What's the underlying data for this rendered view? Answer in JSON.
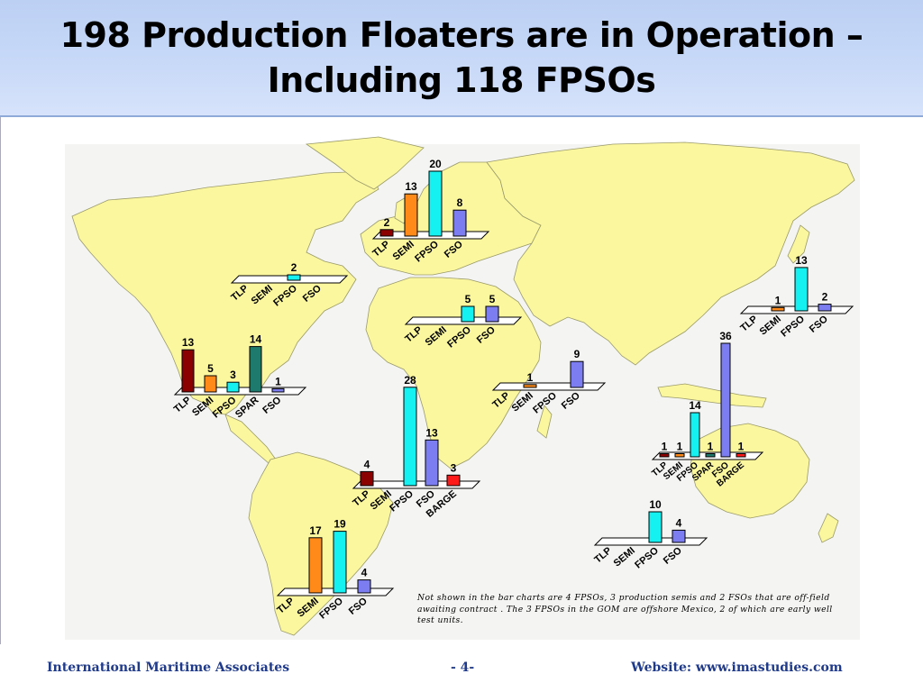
{
  "title": {
    "line1": "198 Production Floaters are in Operation –",
    "line2": "Including 118 FPSOs"
  },
  "colors": {
    "land": "#fbf79f",
    "land_stroke": "#9a9a6a",
    "TLP": "#8b0000",
    "SEMI": "#ff8a1a",
    "FPSO": "#15f0f0",
    "FSO": "#7d7df2",
    "SPAR": "#1f7a6e",
    "BARGE": "#ff1a1a"
  },
  "chart_data": [
    {
      "type": "bar",
      "region": "North Sea",
      "categories": [
        "TLP",
        "SEMI",
        "FPSO",
        "FSO"
      ],
      "values": [
        2,
        13,
        20,
        8
      ]
    },
    {
      "type": "bar",
      "region": "Canada",
      "categories": [
        "TLP",
        "SEMI",
        "FPSO",
        "FSO"
      ],
      "values": [
        0,
        0,
        2,
        0
      ]
    },
    {
      "type": "bar",
      "region": "Mediterranean",
      "categories": [
        "TLP",
        "SEMI",
        "FPSO",
        "FSO"
      ],
      "values": [
        0,
        0,
        5,
        5
      ]
    },
    {
      "type": "bar",
      "region": "Gulf of Mexico",
      "categories": [
        "TLP",
        "SEMI",
        "FPSO",
        "SPAR",
        "FSO"
      ],
      "values": [
        13,
        5,
        3,
        14,
        1
      ]
    },
    {
      "type": "bar",
      "region": "East Asia",
      "categories": [
        "TLP",
        "SEMI",
        "FPSO",
        "FSO"
      ],
      "values": [
        0,
        1,
        13,
        2
      ]
    },
    {
      "type": "bar",
      "region": "Middle East",
      "categories": [
        "TLP",
        "SEMI",
        "FPSO",
        "FSO"
      ],
      "values": [
        0,
        1,
        0,
        9
      ]
    },
    {
      "type": "bar",
      "region": "West Africa",
      "categories": [
        "TLP",
        "SEMI",
        "FPSO",
        "FSO",
        "BARGE"
      ],
      "values": [
        4,
        0,
        28,
        13,
        3
      ]
    },
    {
      "type": "bar",
      "region": "Southeast Asia",
      "categories": [
        "TLP",
        "SEMI",
        "FPSO",
        "SPAR",
        "FSO",
        "BARGE"
      ],
      "values": [
        1,
        1,
        14,
        1,
        36,
        1
      ]
    },
    {
      "type": "bar",
      "region": "Australia",
      "categories": [
        "TLP",
        "SEMI",
        "FPSO",
        "FSO"
      ],
      "values": [
        0,
        0,
        10,
        4
      ]
    },
    {
      "type": "bar",
      "region": "South America",
      "categories": [
        "TLP",
        "SEMI",
        "FPSO",
        "FSO"
      ],
      "values": [
        0,
        17,
        19,
        4
      ]
    }
  ],
  "note": "Not shown in the bar charts are 4 FPSOs, 3 production semis and 2 FSOs that are off-field awaiting contract .  The 3 FPSOs in the GOM are offshore Mexico, 2 of which are early well test units.",
  "footer": {
    "left": "International Maritime Associates",
    "center": "- 4-",
    "right": "Website: www.imastudies.com"
  }
}
